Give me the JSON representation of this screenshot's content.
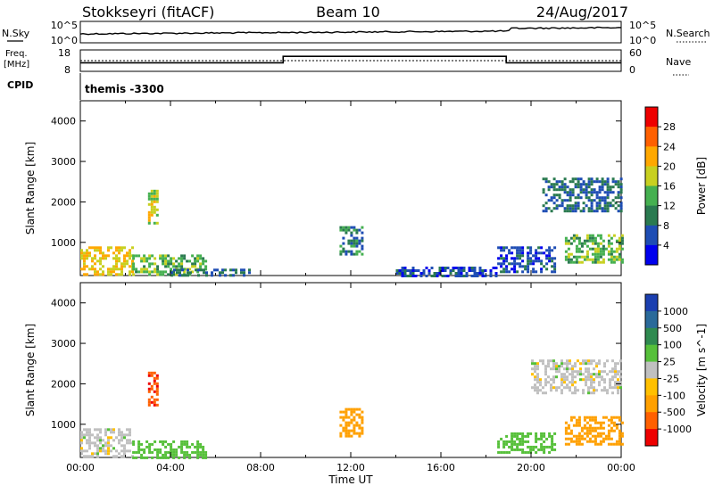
{
  "header": {
    "station": "Stokkseyri (fitACF)",
    "beam": "Beam 10",
    "date": "24/Aug/2017"
  },
  "noise_panel": {
    "left_label": "N.Sky",
    "left_ticks": [
      "10^5",
      "10^0"
    ],
    "right_label": "N.Search",
    "right_ticks": [
      "10^5",
      "10^0"
    ]
  },
  "freq_panel": {
    "left_label_line1": "Freq.",
    "left_label_line2": "[MHz]",
    "left_ticks": [
      "18",
      "8"
    ],
    "right_label": "Nave",
    "right_ticks": [
      "60",
      "0"
    ],
    "freq_mhz": {
      "times_h": [
        0,
        9,
        18.9,
        24
      ],
      "values": [
        12,
        15,
        12
      ]
    }
  },
  "cpid": {
    "label": "CPID",
    "value": "themis -3300"
  },
  "chart_data": [
    {
      "type": "heatmap",
      "title": "",
      "xlabel": "",
      "ylabel": "Slant Range [km]",
      "xlim_hours": [
        0,
        24
      ],
      "ylim_km": [
        180,
        4500
      ],
      "yticks": [
        "1000",
        "2000",
        "3000",
        "4000"
      ],
      "colorbar": {
        "label": "Power [dB]",
        "ticks": [
          "4",
          "8",
          "12",
          "16",
          "20",
          "24",
          "28"
        ],
        "colors": [
          "#0000ee",
          "#1e4db4",
          "#2a7a50",
          "#45b050",
          "#c8d020",
          "#ffa800",
          "#ff6000",
          "#ee0000"
        ]
      },
      "regions": [
        {
          "t": [
            0.0,
            2.3
          ],
          "r": [
            200,
            900
          ],
          "value": 20
        },
        {
          "t": [
            2.3,
            5.6
          ],
          "r": [
            200,
            700
          ],
          "value": 14
        },
        {
          "t": [
            3.0,
            3.4
          ],
          "r": [
            1500,
            2300
          ],
          "value": 18
        },
        {
          "t": [
            4.0,
            7.5
          ],
          "r": [
            200,
            350
          ],
          "value": 8
        },
        {
          "t": [
            11.5,
            12.5
          ],
          "r": [
            700,
            1400
          ],
          "value": 10
        },
        {
          "t": [
            18.5,
            21.0
          ],
          "r": [
            300,
            900
          ],
          "value": 6
        },
        {
          "t": [
            20.5,
            24.0
          ],
          "r": [
            1800,
            2600
          ],
          "value": 8
        },
        {
          "t": [
            21.5,
            24.0
          ],
          "r": [
            500,
            1200
          ],
          "value": 14
        },
        {
          "t": [
            14.0,
            18.5
          ],
          "r": [
            200,
            400
          ],
          "value": 6
        }
      ]
    },
    {
      "type": "heatmap",
      "title": "",
      "xlabel": "Time UT",
      "ylabel": "Slant Range [km]",
      "xlim_hours": [
        0,
        24
      ],
      "ylim_km": [
        180,
        4500
      ],
      "xticks": [
        "00:00",
        "04:00",
        "08:00",
        "12:00",
        "16:00",
        "20:00",
        "00:00"
      ],
      "yticks": [
        "1000",
        "2000",
        "3000",
        "4000"
      ],
      "colorbar": {
        "label": "Velocity [m s^-1]",
        "ticks": [
          "1000",
          "500",
          "100",
          "25",
          "-25",
          "-100",
          "-500",
          "-1000"
        ],
        "colors": [
          "#1b3fb0",
          "#2a6a9a",
          "#2f8a50",
          "#56c03a",
          "#c0c0c0",
          "#ffc000",
          "#ffa000",
          "#ff6000",
          "#ee0000"
        ]
      },
      "regions": [
        {
          "t": [
            0.0,
            2.3
          ],
          "r": [
            200,
            900
          ],
          "value": 0
        },
        {
          "t": [
            2.3,
            5.6
          ],
          "r": [
            200,
            600
          ],
          "value": 60
        },
        {
          "t": [
            3.0,
            3.4
          ],
          "r": [
            1500,
            2300
          ],
          "value": -900
        },
        {
          "t": [
            11.5,
            12.5
          ],
          "r": [
            700,
            1400
          ],
          "value": -200
        },
        {
          "t": [
            20.0,
            24.0
          ],
          "r": [
            1800,
            2600
          ],
          "value": 0
        },
        {
          "t": [
            21.5,
            24.0
          ],
          "r": [
            500,
            1200
          ],
          "value": -300
        },
        {
          "t": [
            18.5,
            21.0
          ],
          "r": [
            300,
            800
          ],
          "value": 60
        }
      ]
    }
  ]
}
